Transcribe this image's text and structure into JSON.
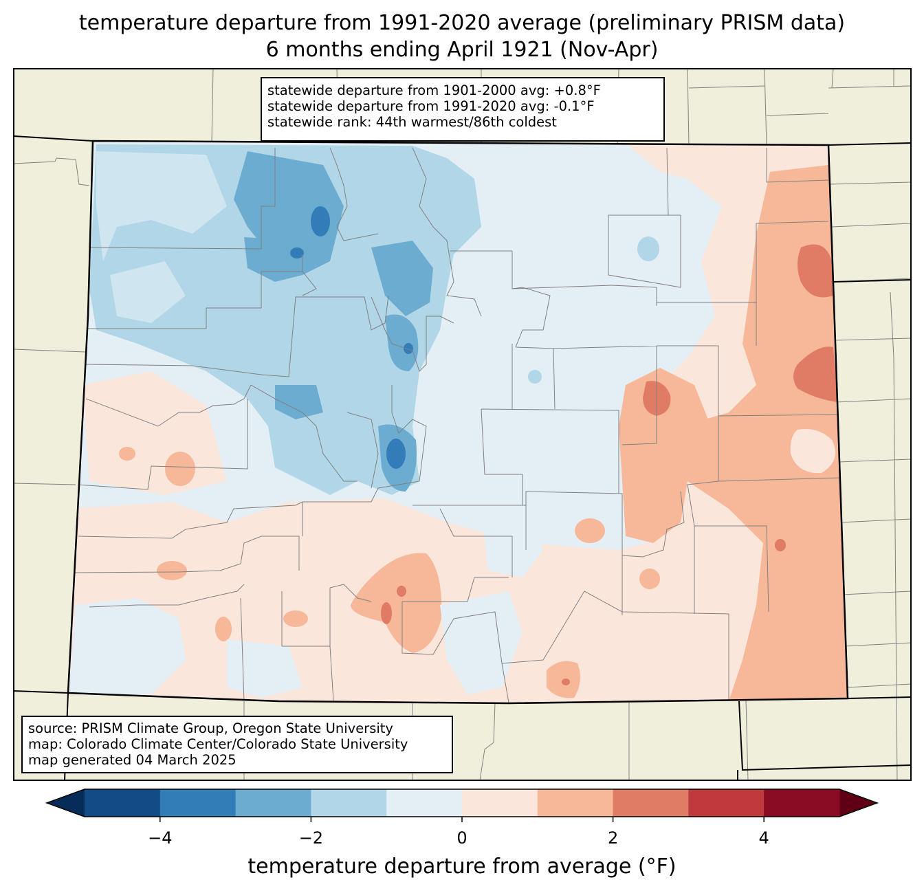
{
  "title_line1": "temperature departure from 1991-2020 average (preliminary PRISM data)",
  "title_line2": "6 months ending April 1921 (Nov-Apr)",
  "stats_box": [
    "statewide departure from 1901-2000 avg: +0.8°F",
    "statewide departure from 1991-2020 avg: -0.1°F",
    "statewide rank: 44th warmest/86th coldest"
  ],
  "source_box": [
    "source: PRISM Climate Group, Oregon State University",
    "map: Colorado Climate Center/Colorado State University",
    "map generated 04 March 2025"
  ],
  "colorbar": {
    "label": "temperature departure from average (°F)",
    "min": -5,
    "max": 5,
    "ticks": [
      -4,
      -2,
      0,
      2,
      4
    ],
    "tick_labels": [
      "−4",
      "−2",
      "0",
      "2",
      "4"
    ],
    "colors": [
      "#134b87",
      "#327cb7",
      "#6bacd0",
      "#b0d6e7",
      "#e4eef5",
      "#fbe6dc",
      "#f7b799",
      "#e07b66",
      "#c03a3d",
      "#880a23"
    ],
    "under_color": "#082c5a",
    "over_color": "#600014"
  },
  "map_colors": {
    "land_outside": "#f0efdb",
    "state_border": "#000000",
    "county_border": "#808080"
  }
}
